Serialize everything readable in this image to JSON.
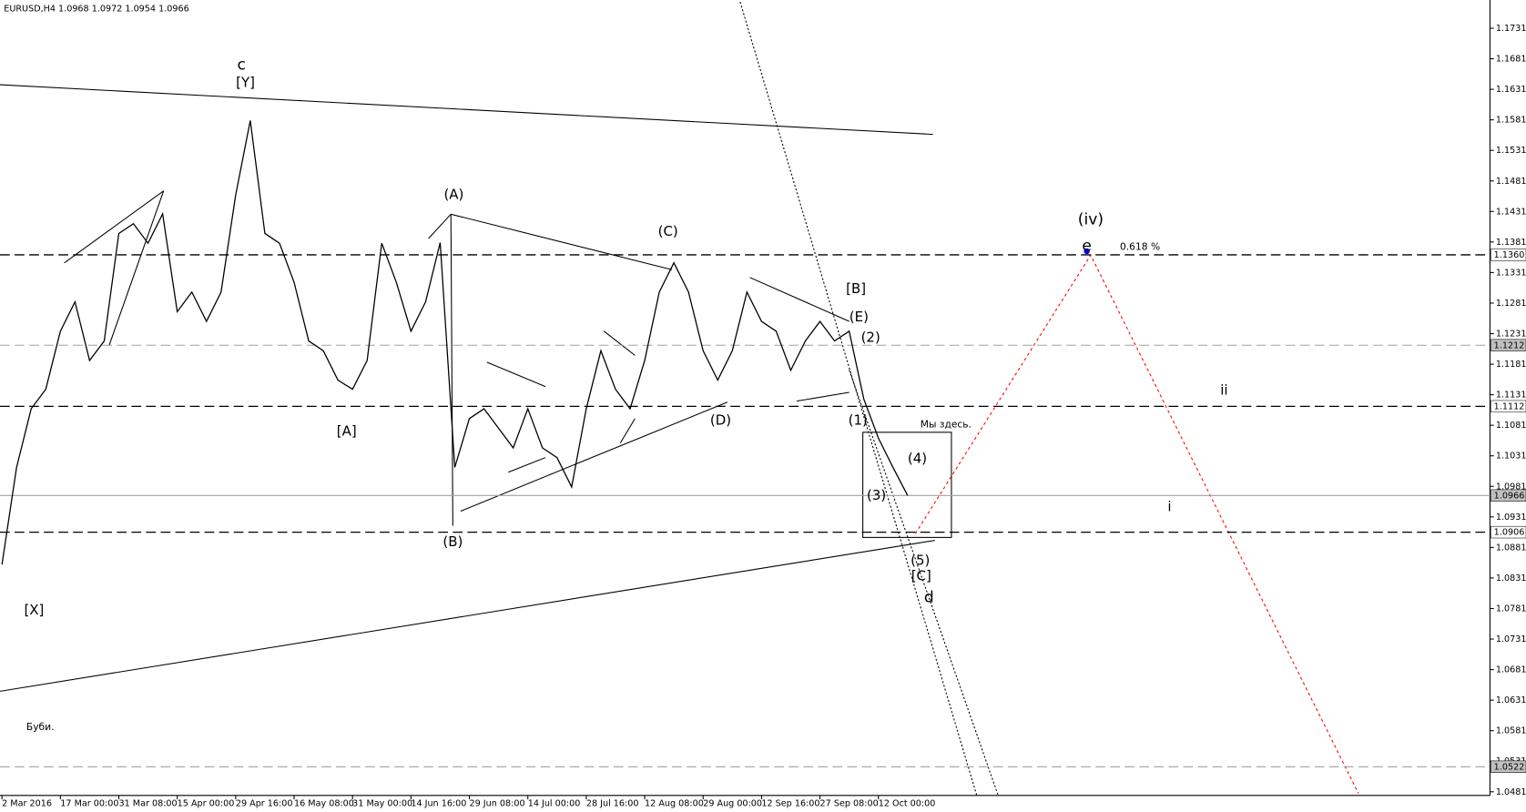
{
  "chart_data": {
    "type": "line",
    "title": "EURUSD,H4  1.0968 1.0972 1.0954 1.0966",
    "color": "#000000",
    "categories": [
      "2 Mar 2016",
      null,
      null,
      null,
      "17 Mar 00:00",
      null,
      null,
      null,
      "31 Mar 08:00",
      null,
      null,
      null,
      "15 Apr 00:00",
      null,
      null,
      null,
      "29 Apr 16:00",
      null,
      null,
      null,
      "16 May 08:00",
      null,
      null,
      null,
      "31 May 00:00",
      null,
      null,
      null,
      "14 Jun 16:00",
      null,
      null,
      null,
      "29 Jun 08:00",
      null,
      null,
      null,
      "14 Jul 00:00",
      null,
      null,
      null,
      "28 Jul 16:00",
      null,
      null,
      null,
      "12 Aug 08:00",
      null,
      null,
      null,
      "29 Aug 00:00",
      null,
      null,
      null,
      "12 Sep 16:00",
      null,
      null,
      null,
      "27 Sep 08:00",
      null,
      null,
      null,
      "12 Oct 00:00",
      null,
      null
    ],
    "values": [
      1.0853,
      1.1012,
      1.1108,
      1.114,
      1.1235,
      1.1283,
      1.1187,
      1.1219,
      1.1395,
      1.1411,
      1.1379,
      1.1427,
      1.1267,
      1.1299,
      1.1251,
      1.1299,
      1.1458,
      1.158,
      1.1395,
      1.1379,
      1.1315,
      1.1219,
      1.1203,
      1.1155,
      1.114,
      1.1187,
      1.1379,
      1.1315,
      1.1235,
      1.1283,
      1.138,
      1.1012,
      1.1092,
      1.1108,
      1.1076,
      1.1044,
      1.1108,
      1.1044,
      1.1028,
      1.098,
      1.1108,
      1.1203,
      1.114,
      1.1108,
      1.1187,
      1.1299,
      1.1347,
      1.1299,
      1.1203,
      1.1155,
      1.1203,
      1.1299,
      1.1251,
      1.1235,
      1.1171,
      1.1219,
      1.1251,
      1.1219,
      1.1235,
      1.1124,
      1.106,
      1.1012,
      1.0966
    ],
    "ylim": [
      1.0475,
      1.1774
    ],
    "yticks": [
      1.1731,
      1.1681,
      1.1631,
      1.1581,
      1.1531,
      1.1481,
      1.1431,
      1.1381,
      1.1331,
      1.1281,
      1.1231,
      1.1181,
      1.1131,
      1.1081,
      1.1031,
      1.0981,
      1.0931,
      1.0881,
      1.0831,
      1.0781,
      1.0731,
      1.0681,
      1.0631,
      1.0581,
      1.0531,
      1.0481
    ],
    "levels": [
      {
        "value": 1.136,
        "label": "1.1360",
        "color": "#000000",
        "dashed": true
      },
      {
        "value": 1.1212,
        "label": "1.1212",
        "color": "#a0a0a0",
        "dashed": true
      },
      {
        "value": 1.1112,
        "label": "1.1112",
        "color": "#000000",
        "dashed": true
      },
      {
        "value": 1.0966,
        "label": "1.0966",
        "color": "#a0a0a0",
        "dashed": false
      },
      {
        "value": 1.0906,
        "label": "1.0906",
        "color": "#000000",
        "dashed": true
      },
      {
        "value": 1.0522,
        "label": "1.0522",
        "color": "#a0a0a0",
        "dashed": true
      }
    ],
    "annotations": [
      {
        "text": "c",
        "color": "#0000ff"
      },
      {
        "text": "[Y]",
        "color": "#ff0000"
      },
      {
        "text": "(A)",
        "color": "#228b22"
      },
      {
        "text": "(C)",
        "color": "#228b22"
      },
      {
        "text": "(iv)",
        "color": "#228b22"
      },
      {
        "text": "e",
        "color": "#0000ff"
      },
      {
        "text": "0.618 %",
        "color": "#000000"
      },
      {
        "text": "[B]",
        "color": "#ff0000"
      },
      {
        "text": "(E)",
        "color": "#228b22"
      },
      {
        "text": "(2)",
        "color": "#228b22"
      },
      {
        "text": "[A]",
        "color": "#ff0000"
      },
      {
        "text": "(D)",
        "color": "#228b22"
      },
      {
        "text": "(1)",
        "color": "#228b22"
      },
      {
        "text": "Мы здесь.",
        "color": "#000000"
      },
      {
        "text": "(4)",
        "color": "#228b22"
      },
      {
        "text": "ii",
        "color": "#0000ff"
      },
      {
        "text": "(3)",
        "color": "#228b22"
      },
      {
        "text": "i",
        "color": "#0000ff"
      },
      {
        "text": "(B)",
        "color": "#228b22"
      },
      {
        "text": "(5)",
        "color": "#228b22"
      },
      {
        "text": "[C]",
        "color": "#ff0000"
      },
      {
        "text": "d",
        "color": "#0000ff"
      },
      {
        "text": "[X]",
        "color": "#ff0000"
      },
      {
        "text": "Буби.",
        "color": "#000000"
      }
    ]
  }
}
